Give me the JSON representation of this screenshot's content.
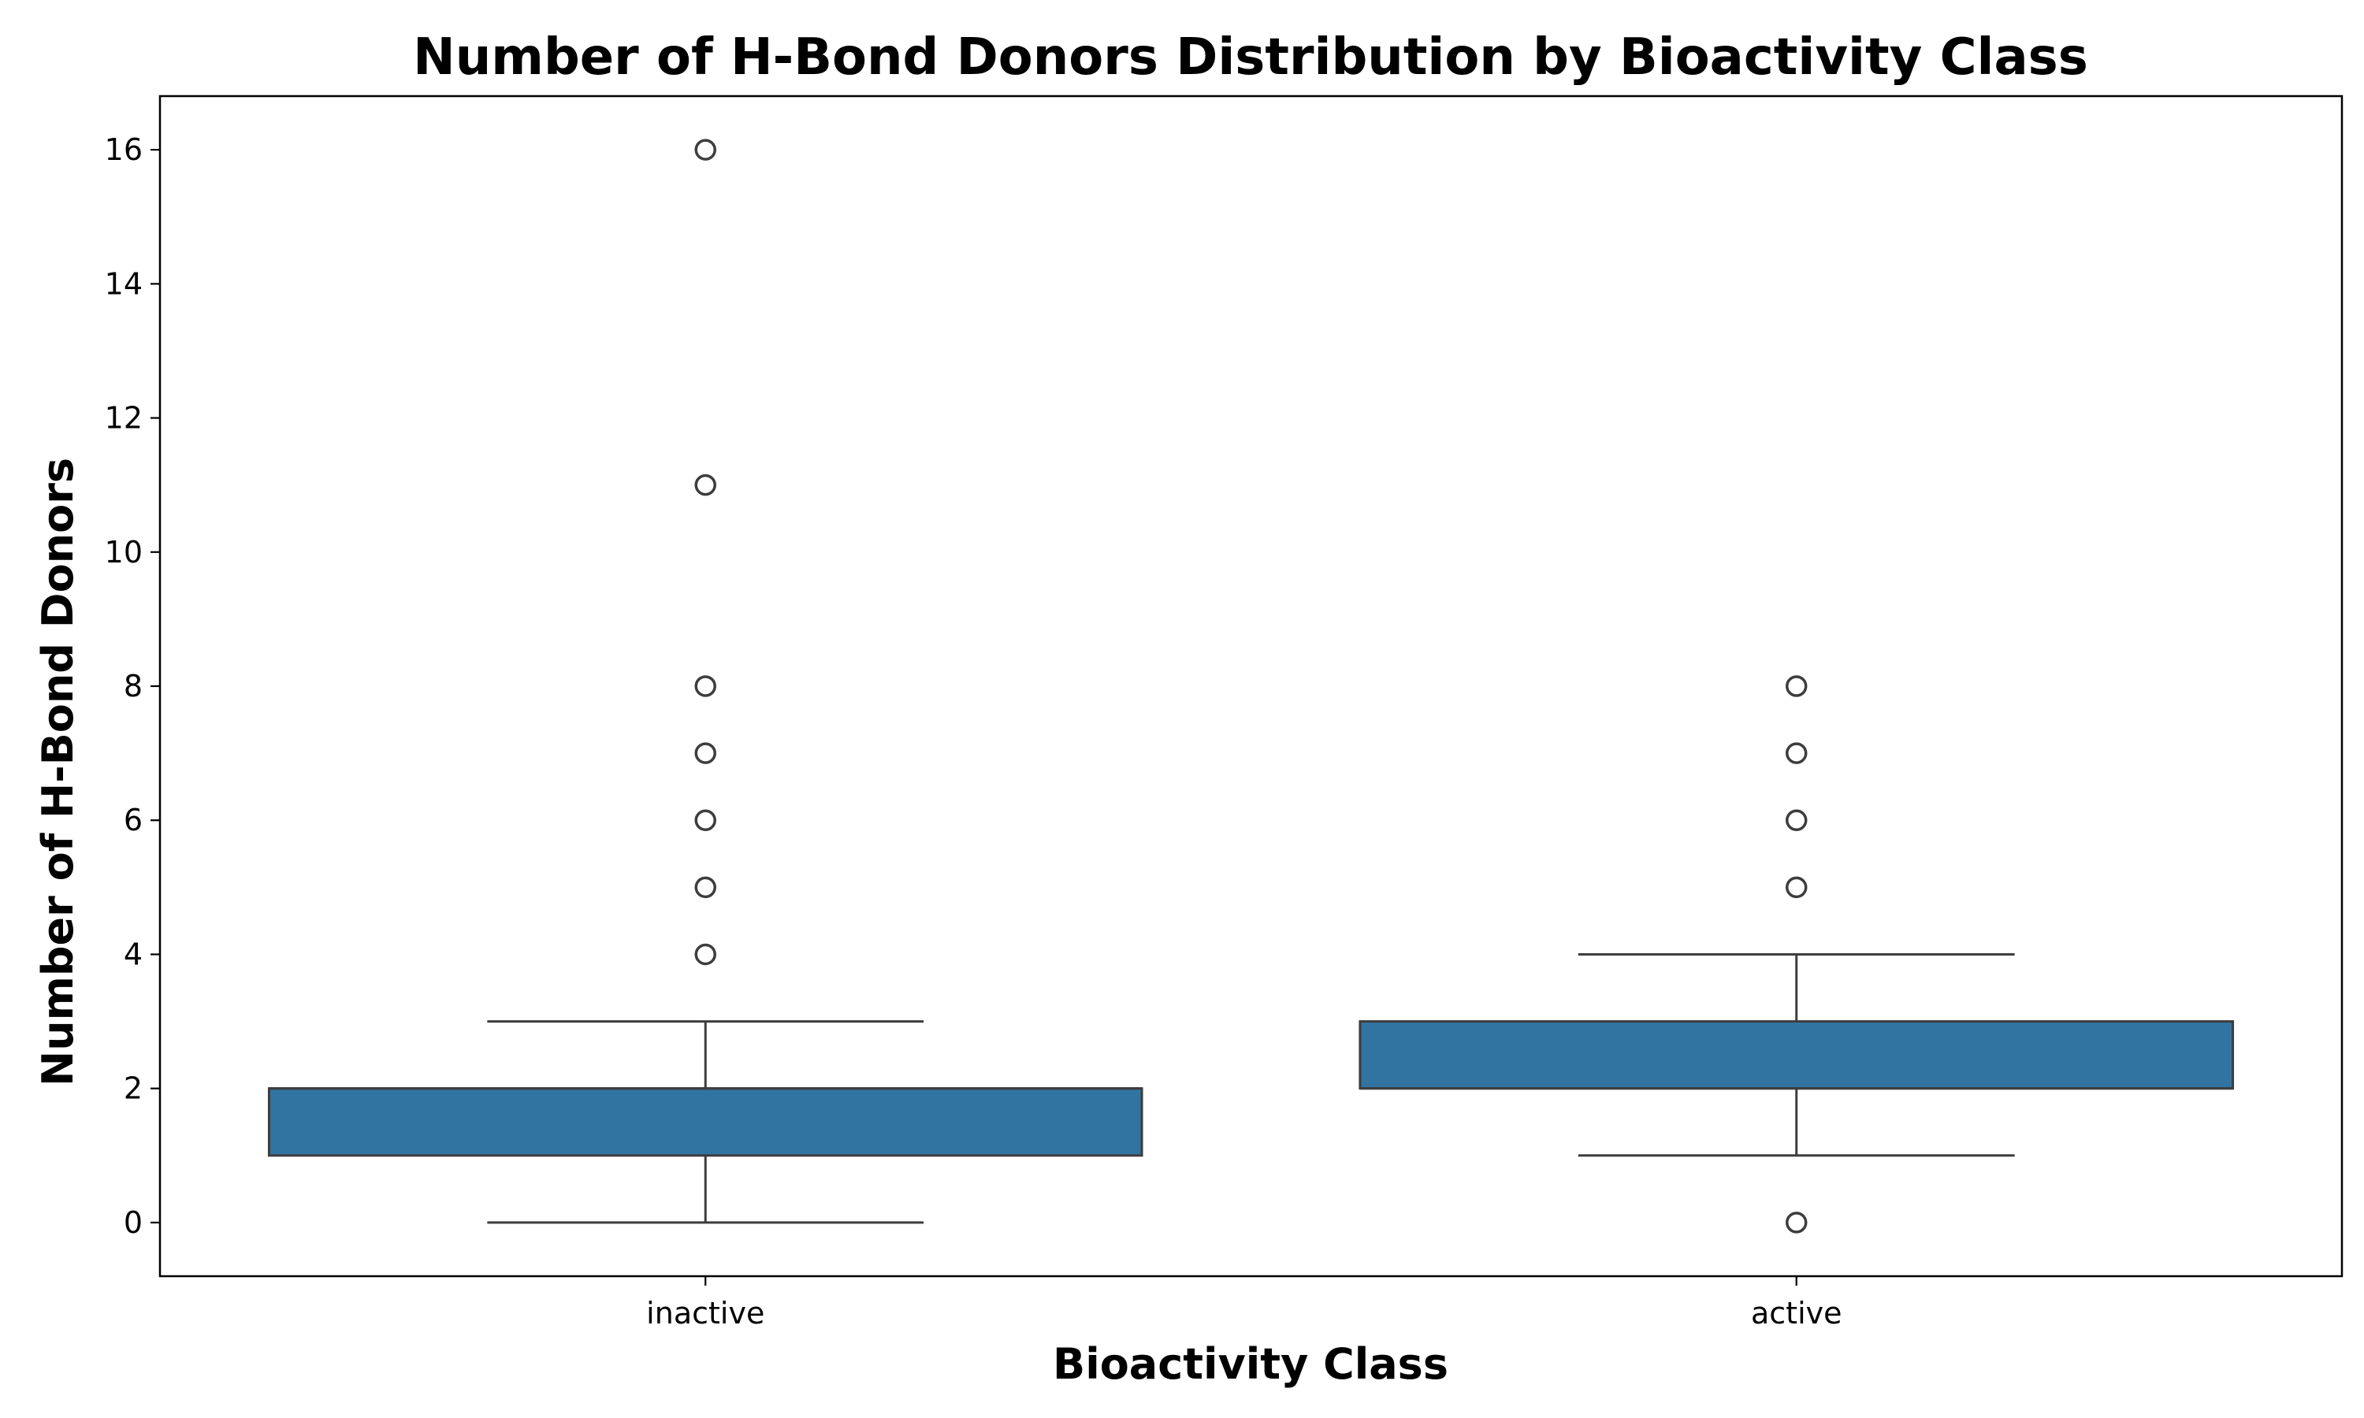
{
  "chart_data": {
    "type": "box",
    "title": "Number of H-Bond Donors Distribution by Bioactivity Class",
    "xlabel": "Bioactivity Class",
    "ylabel": "Number of H-Bond Donors",
    "categories": [
      "inactive",
      "active"
    ],
    "ylim": [
      -0.8,
      16.8
    ],
    "yticks": [
      0,
      2,
      4,
      6,
      8,
      10,
      12,
      14,
      16
    ],
    "grid": false,
    "legend": "none",
    "boxes": [
      {
        "category": "inactive",
        "q1": 1,
        "median": 2,
        "q3": 2,
        "whisker_low": 0,
        "whisker_high": 3,
        "outliers": [
          4,
          5,
          6,
          7,
          8,
          11,
          16
        ]
      },
      {
        "category": "active",
        "q1": 2,
        "median": 2,
        "q3": 3,
        "whisker_low": 1,
        "whisker_high": 4,
        "outliers": [
          0,
          5,
          6,
          7,
          8
        ]
      }
    ],
    "colors": {
      "box_fill": "#3274a1",
      "line": "#3d3d3d",
      "axes": "#000000"
    }
  }
}
